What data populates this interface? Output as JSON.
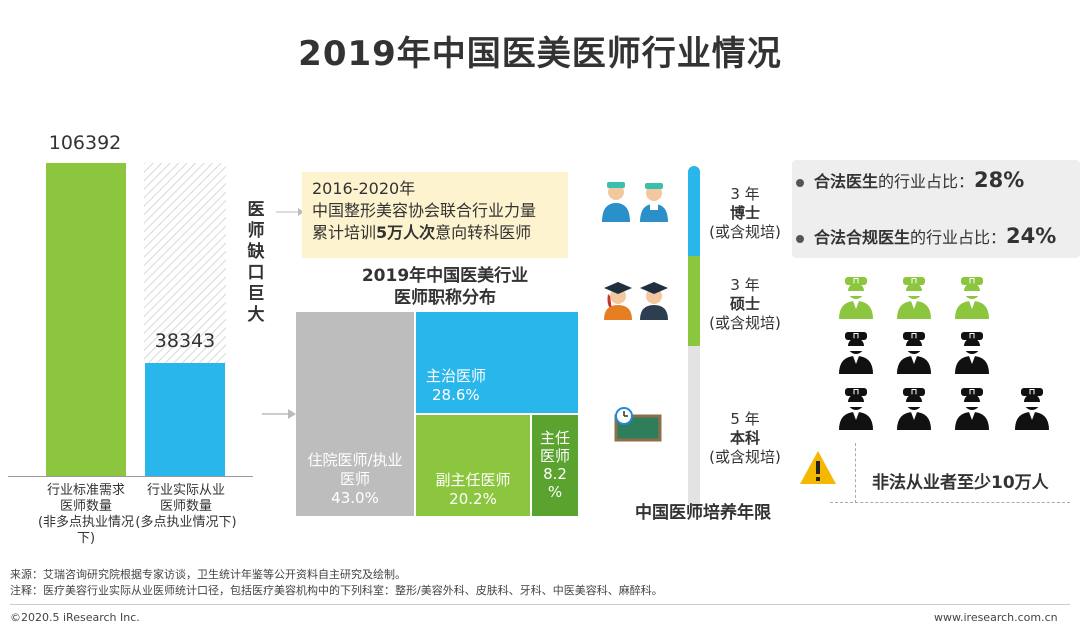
{
  "title": "2019年中国医美医师行业情况",
  "colors": {
    "green": "#8cc63f",
    "blue": "#29b6ea",
    "gray": "#bdbdbd",
    "darkgreen": "#5aa32f",
    "ink": "#111111"
  },
  "bars": {
    "items": [
      {
        "value": "106392",
        "label1": "行业标准需求",
        "label2": "医师数量",
        "label3": "(非多点执业情况下)"
      },
      {
        "value": "38343",
        "label1": "行业实际从业",
        "label2": "医师数量",
        "label3": "(多点执业情况下)"
      }
    ],
    "gap_label": [
      "医",
      "师",
      "缺",
      "口",
      "巨",
      "大"
    ]
  },
  "callout": {
    "line1": "2016-2020年",
    "line2": "中国整形美容协会联合行业力量",
    "line3_pre": "累计培训",
    "line3_bold": "5万人次",
    "line3_post": "意向转科医师"
  },
  "chart_data": [
    {
      "type": "bar",
      "title": "",
      "categories": [
        "行业标准需求医师数量(非多点执业情况下)",
        "行业实际从业医师数量(多点执业情况下)"
      ],
      "values": [
        106392,
        38343
      ],
      "ylim": [
        0,
        106392
      ]
    },
    {
      "type": "treemap",
      "title": "2019年中国医美行业医师职称分布",
      "title_line1": "2019年中国医美行业",
      "title_line2": "医师职称分布",
      "cells": [
        {
          "name": "住院医师/执业医师",
          "line1": "住院医师/执业",
          "line2": "医师",
          "value": "43.0%"
        },
        {
          "name": "主治医师",
          "line1": "主治医师",
          "value": "28.6%"
        },
        {
          "name": "副主任医师",
          "line1": "副主任医师",
          "value": "20.2%"
        },
        {
          "name": "主任医师",
          "line1": "主任",
          "line2": "医师",
          "line3": "8.2",
          "line4": "%"
        }
      ]
    }
  ],
  "training": {
    "title": "中国医师培养年限",
    "stages": [
      {
        "years": "3 年",
        "degree": "博士",
        "note": "(或含规培)"
      },
      {
        "years": "3 年",
        "degree": "硕士",
        "note": "(或含规培)"
      },
      {
        "years": "5 年",
        "degree": "本科",
        "note": "(或含规培)"
      }
    ]
  },
  "stats": [
    {
      "bold": "合法医生",
      "rest": "的行业占比：",
      "pct": "28%"
    },
    {
      "bold": "合法合规医生",
      "rest": "的行业占比：",
      "pct": "24%"
    }
  ],
  "warning": {
    "icon": "warning-icon",
    "text": "非法从业者至少10万人"
  },
  "footer": {
    "source": "来源：艾瑞咨询研究院根据专家访谈，卫生统计年鉴等公开资料自主研究及绘制。",
    "note": "注释：医疗美容行业实际从业医师统计口径，包括医疗美容机构中的下列科室：整形/美容外科、皮肤科、牙科、中医美容科、麻醉科。",
    "copyright": "©2020.5 iResearch Inc.",
    "site": "www.iresearch.com.cn"
  }
}
